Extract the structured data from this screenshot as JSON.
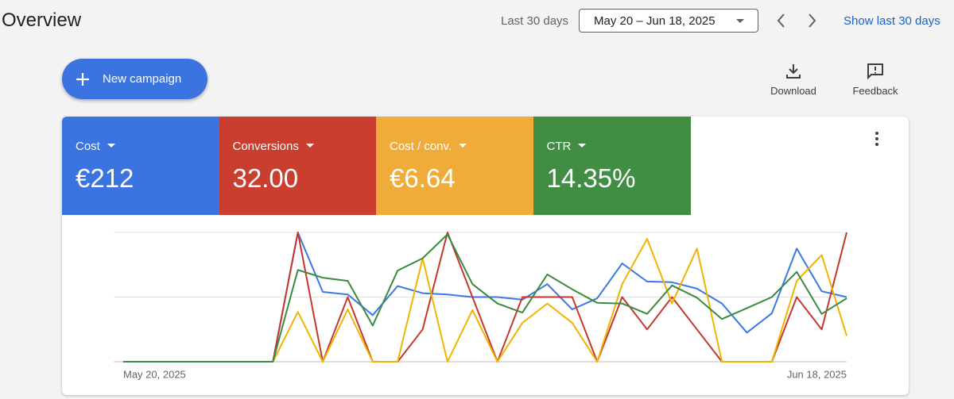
{
  "header": {
    "title": "Overview",
    "range_label": "Last 30 days",
    "date_range": "May 20 – Jun 18, 2025",
    "show_link": "Show last 30 days"
  },
  "actions": {
    "new_campaign": "New campaign",
    "download": "Download",
    "feedback": "Feedback"
  },
  "metrics": [
    {
      "label": "Cost",
      "value": "€212",
      "color": "#3b74e0"
    },
    {
      "label": "Conversions",
      "value": "32.00",
      "color": "#c93e2f"
    },
    {
      "label": "Cost / conv.",
      "value": "€6.64",
      "color": "#efac3a"
    },
    {
      "label": "CTR",
      "value": "14.35%",
      "color": "#418d43"
    }
  ],
  "chart_data": {
    "type": "line",
    "categories": [
      "May 20, 2025",
      null,
      null,
      null,
      null,
      null,
      null,
      null,
      null,
      null,
      null,
      null,
      null,
      null,
      null,
      null,
      null,
      null,
      null,
      null,
      null,
      null,
      null,
      null,
      null,
      null,
      null,
      null,
      null,
      "Jun 18, 2025"
    ],
    "ylim": [
      0,
      2
    ],
    "yticks": [
      0,
      1,
      2
    ],
    "grid": true,
    "series": [
      {
        "name": "Cost",
        "color": "#3b78e7",
        "values": [
          0,
          0,
          0,
          0,
          0,
          0,
          0,
          2.0,
          1.08,
          1.04,
          0.72,
          1.17,
          1.06,
          1.04,
          1.0,
          1.0,
          0.96,
          1.2,
          0.81,
          0.98,
          1.52,
          1.24,
          1.23,
          1.13,
          0.9,
          0.45,
          0.75,
          1.75,
          1.09,
          1.0
        ]
      },
      {
        "name": "Conversions",
        "color": "#c5372c",
        "values": [
          0,
          0,
          0,
          0,
          0,
          0,
          0,
          2.0,
          0,
          1.0,
          0,
          0,
          0.5,
          2.0,
          1.0,
          0,
          1.0,
          1.0,
          1.0,
          0,
          1.0,
          0.5,
          1.0,
          0.5,
          0,
          0,
          0,
          1.0,
          0.5,
          2.0
        ]
      },
      {
        "name": "Cost / conv.",
        "color": "#f0b400",
        "values": [
          0,
          0,
          0,
          0,
          0,
          0,
          0,
          0.77,
          0,
          0.81,
          0,
          0,
          1.6,
          0,
          0.8,
          0,
          0.6,
          0.9,
          0.6,
          0,
          1.2,
          1.9,
          0.9,
          1.75,
          0,
          0,
          0,
          1.25,
          1.65,
          0.4
        ]
      },
      {
        "name": "CTR",
        "color": "#3a8b3e",
        "values": [
          0,
          0,
          0,
          0,
          0,
          0,
          0,
          1.42,
          1.3,
          1.25,
          0.56,
          1.41,
          1.6,
          1.97,
          1.2,
          0.9,
          0.76,
          1.35,
          1.12,
          0.91,
          0.9,
          0.74,
          1.18,
          0.99,
          0.66,
          0.83,
          1.0,
          1.39,
          0.74,
          0.98
        ]
      }
    ]
  }
}
